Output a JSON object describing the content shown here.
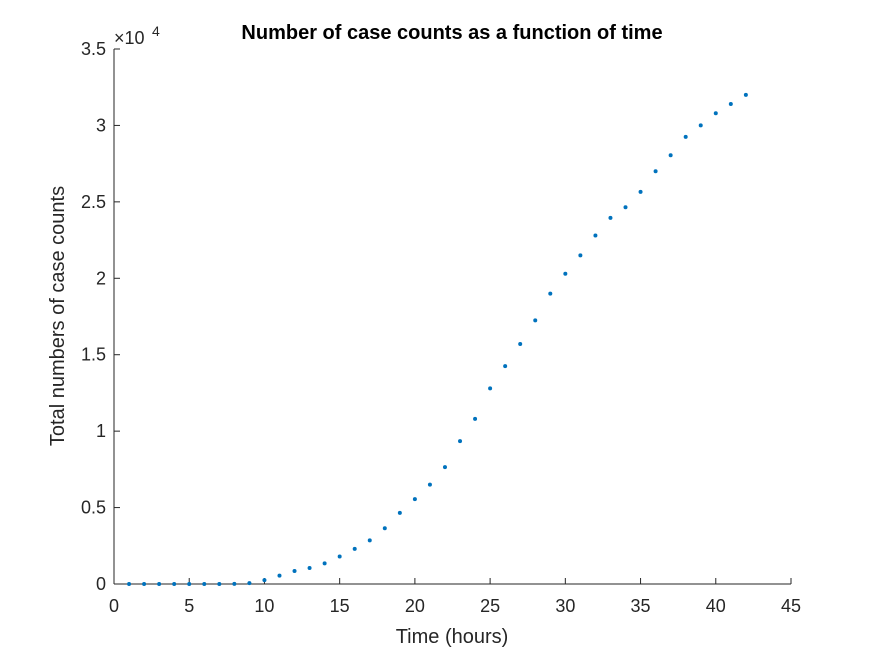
{
  "chart_data": {
    "type": "scatter",
    "title": "Number of case counts as a function of time",
    "xlabel": "Time (hours)",
    "ylabel": "Total numbers of case counts",
    "xlim": [
      0,
      45
    ],
    "ylim": [
      0,
      35000
    ],
    "x_ticks": [
      0,
      5,
      10,
      15,
      20,
      25,
      30,
      35,
      40,
      45
    ],
    "x_tick_labels": [
      "0",
      "5",
      "10",
      "15",
      "20",
      "25",
      "30",
      "35",
      "40",
      "45"
    ],
    "y_ticks": [
      0,
      5000,
      10000,
      15000,
      20000,
      25000,
      30000,
      35000
    ],
    "y_tick_labels": [
      "0",
      "0.5",
      "1",
      "1.5",
      "2",
      "2.5",
      "3",
      "3.5"
    ],
    "y_exponent_base": "×10",
    "y_exponent_power": "4",
    "grid": false,
    "marker_color": "#0072BD",
    "series": [
      {
        "x": [
          1,
          2,
          3,
          4,
          5,
          6,
          7,
          8,
          9,
          10,
          11,
          12,
          13,
          14,
          15,
          16,
          17,
          18,
          19,
          20,
          21,
          22,
          23,
          24,
          25,
          26,
          27,
          28,
          29,
          30,
          31,
          32,
          33,
          34,
          35,
          36,
          37,
          38,
          39,
          40,
          41,
          42
        ],
        "y": [
          0,
          0,
          0,
          0,
          0,
          0,
          0,
          10,
          60,
          250,
          550,
          850,
          1050,
          1350,
          1800,
          2300,
          2850,
          3650,
          4650,
          5550,
          6500,
          7650,
          9350,
          10800,
          12800,
          14250,
          15700,
          17250,
          19000,
          20300,
          21500,
          22800,
          23950,
          24650,
          25650,
          27000,
          28050,
          29250,
          30000,
          30800,
          31400,
          32000
        ]
      }
    ]
  }
}
